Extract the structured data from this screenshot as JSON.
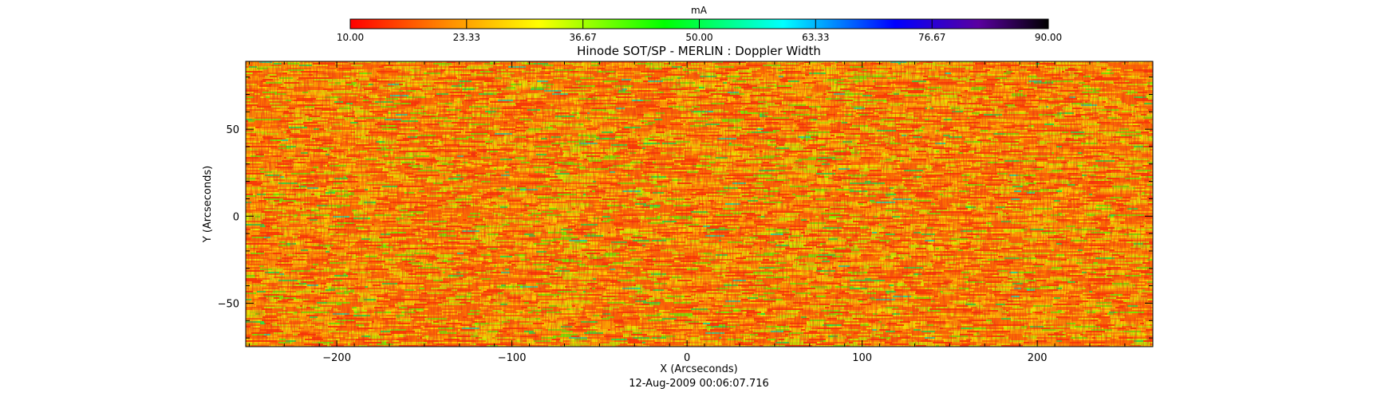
{
  "chart_data": {
    "type": "heatmap",
    "title": "Hinode SOT/SP - MERLIN : Doppler Width",
    "xlabel": "X (Arcseconds)",
    "ylabel": "Y (Arcseconds)",
    "footer": "12-Aug-2009 00:06:07.716",
    "xlim": [
      -252,
      266
    ],
    "ylim": [
      -75,
      89
    ],
    "xticks": [
      -200,
      -100,
      0,
      100,
      200
    ],
    "yticks": [
      -50,
      0,
      50
    ],
    "xtick_labels": [
      "−200",
      "−100",
      "0",
      "100",
      "200"
    ],
    "ytick_labels": [
      "−50",
      "0",
      "50"
    ],
    "grid": false,
    "colorbar": {
      "label": "mA",
      "range": [
        10.0,
        90.0
      ],
      "ticks": [
        10.0,
        23.33,
        36.67,
        50.0,
        63.33,
        76.67,
        90.0
      ],
      "tick_labels": [
        "10.00",
        "23.33",
        "36.67",
        "50.00",
        "63.33",
        "76.67",
        "90.00"
      ],
      "colormap": [
        "#ff0000",
        "#ff8c00",
        "#ffff00",
        "#00ff00",
        "#00ffff",
        "#0000ff",
        "#5a00a0",
        "#000000"
      ]
    },
    "field_summary": {
      "dominant_range": [
        10.0,
        45.0
      ],
      "typical_value": 27.0
    }
  }
}
